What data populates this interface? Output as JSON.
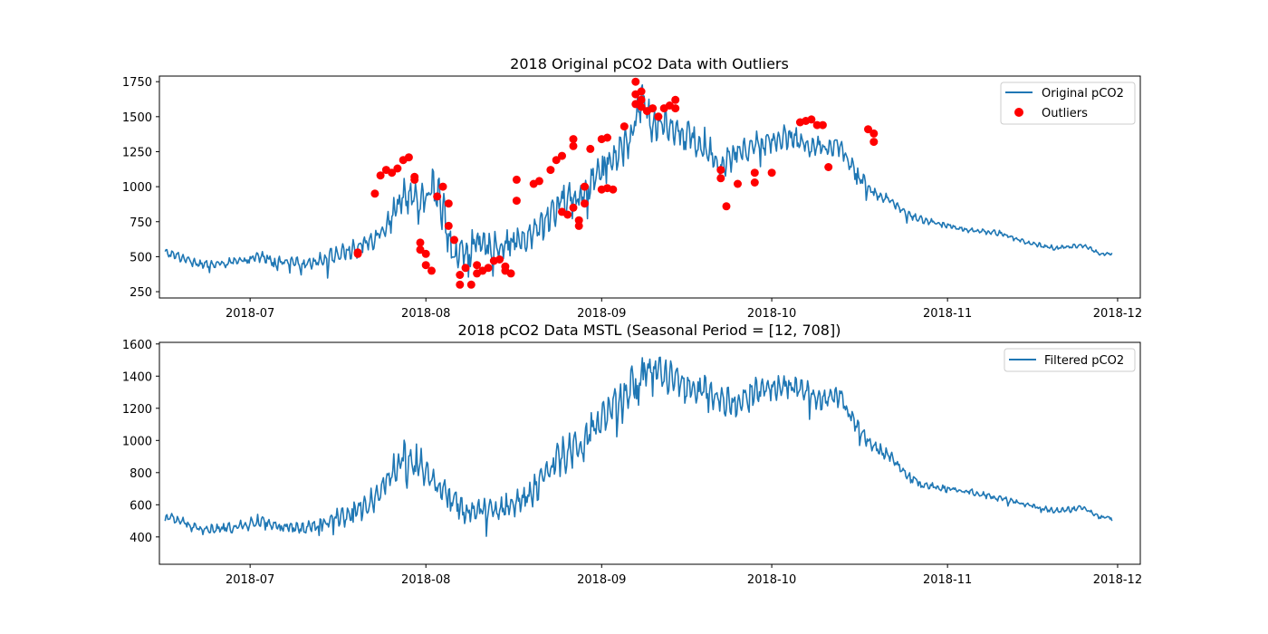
{
  "colors": {
    "line": "#1f77b4",
    "outlier": "#ff0000",
    "axes": "#000000",
    "legend_border": "#cccccc"
  },
  "chart_data": [
    {
      "type": "line",
      "title": "2018 Original pCO2 Data with Outliers",
      "xlabel": "",
      "ylabel": "",
      "x_range": [
        "2018-06-15",
        "2018-12-05"
      ],
      "ylim": [
        205,
        1790
      ],
      "x_ticks": [
        "2018-07",
        "2018-08",
        "2018-09",
        "2018-10",
        "2018-11",
        "2018-12"
      ],
      "y_ticks": [
        250,
        500,
        750,
        1000,
        1250,
        1500,
        1750
      ],
      "grid": false,
      "legend_position": "top-right",
      "series": [
        {
          "name": "Original pCO2",
          "kind": "line",
          "x": [
            "2018-06-16",
            "2018-06-20",
            "2018-06-23",
            "2018-06-26",
            "2018-06-30",
            "2018-07-03",
            "2018-07-06",
            "2018-07-10",
            "2018-07-13",
            "2018-07-16",
            "2018-07-20",
            "2018-07-23",
            "2018-07-26",
            "2018-07-28",
            "2018-07-31",
            "2018-08-02",
            "2018-08-04",
            "2018-08-06",
            "2018-08-08",
            "2018-08-11",
            "2018-08-14",
            "2018-08-16",
            "2018-08-19",
            "2018-08-22",
            "2018-08-25",
            "2018-08-28",
            "2018-08-31",
            "2018-09-03",
            "2018-09-06",
            "2018-09-08",
            "2018-09-10",
            "2018-09-13",
            "2018-09-16",
            "2018-09-19",
            "2018-09-22",
            "2018-09-25",
            "2018-09-28",
            "2018-10-01",
            "2018-10-04",
            "2018-10-07",
            "2018-10-10",
            "2018-10-13",
            "2018-10-16",
            "2018-10-19",
            "2018-10-22",
            "2018-10-25",
            "2018-10-28",
            "2018-11-01",
            "2018-11-05",
            "2018-11-10",
            "2018-11-15",
            "2018-11-20",
            "2018-11-25",
            "2018-11-28",
            "2018-11-30"
          ],
          "y": [
            530,
            480,
            440,
            450,
            470,
            500,
            460,
            450,
            470,
            510,
            560,
            640,
            780,
            960,
            850,
            1000,
            850,
            480,
            560,
            580,
            570,
            610,
            620,
            760,
            900,
            930,
            1080,
            1200,
            1340,
            1620,
            1450,
            1450,
            1360,
            1300,
            1150,
            1250,
            1300,
            1330,
            1360,
            1300,
            1280,
            1300,
            1080,
            960,
            900,
            800,
            760,
            720,
            690,
            670,
            600,
            560,
            580,
            520,
            520
          ],
          "amplitude": [
            35,
            50,
            45,
            40,
            45,
            60,
            55,
            55,
            70,
            80,
            90,
            100,
            140,
            170,
            200,
            180,
            220,
            170,
            180,
            150,
            120,
            130,
            150,
            160,
            170,
            200,
            170,
            160,
            170,
            200,
            180,
            150,
            150,
            160,
            140,
            130,
            120,
            110,
            110,
            100,
            90,
            100,
            80,
            60,
            40,
            35,
            30,
            30,
            25,
            25,
            20,
            25,
            20,
            15,
            15
          ]
        },
        {
          "name": "Outliers",
          "kind": "scatter",
          "points": [
            [
              "2018-07-20",
              520
            ],
            [
              "2018-07-20",
              530
            ],
            [
              "2018-07-23",
              950
            ],
            [
              "2018-07-24",
              1080
            ],
            [
              "2018-07-25",
              1120
            ],
            [
              "2018-07-26",
              1100
            ],
            [
              "2018-07-27",
              1130
            ],
            [
              "2018-07-28",
              1190
            ],
            [
              "2018-07-29",
              1210
            ],
            [
              "2018-07-30",
              1070
            ],
            [
              "2018-07-30",
              1050
            ],
            [
              "2018-07-31",
              600
            ],
            [
              "2018-07-31",
              550
            ],
            [
              "2018-08-01",
              520
            ],
            [
              "2018-08-01",
              440
            ],
            [
              "2018-08-02",
              400
            ],
            [
              "2018-08-03",
              930
            ],
            [
              "2018-08-04",
              1000
            ],
            [
              "2018-08-05",
              880
            ],
            [
              "2018-08-05",
              720
            ],
            [
              "2018-08-06",
              620
            ],
            [
              "2018-08-07",
              300
            ],
            [
              "2018-08-07",
              370
            ],
            [
              "2018-08-08",
              420
            ],
            [
              "2018-08-09",
              300
            ],
            [
              "2018-08-10",
              380
            ],
            [
              "2018-08-10",
              440
            ],
            [
              "2018-08-11",
              400
            ],
            [
              "2018-08-12",
              420
            ],
            [
              "2018-08-13",
              470
            ],
            [
              "2018-08-14",
              480
            ],
            [
              "2018-08-15",
              400
            ],
            [
              "2018-08-15",
              430
            ],
            [
              "2018-08-16",
              380
            ],
            [
              "2018-08-17",
              1050
            ],
            [
              "2018-08-17",
              900
            ],
            [
              "2018-08-20",
              1020
            ],
            [
              "2018-08-21",
              1040
            ],
            [
              "2018-08-23",
              1120
            ],
            [
              "2018-08-24",
              1190
            ],
            [
              "2018-08-25",
              1220
            ],
            [
              "2018-08-25",
              820
            ],
            [
              "2018-08-26",
              800
            ],
            [
              "2018-08-27",
              850
            ],
            [
              "2018-08-27",
              1340
            ],
            [
              "2018-08-27",
              1290
            ],
            [
              "2018-08-28",
              720
            ],
            [
              "2018-08-28",
              760
            ],
            [
              "2018-08-29",
              880
            ],
            [
              "2018-08-29",
              1000
            ],
            [
              "2018-08-30",
              1270
            ],
            [
              "2018-09-01",
              1340
            ],
            [
              "2018-09-02",
              1350
            ],
            [
              "2018-09-01",
              980
            ],
            [
              "2018-09-02",
              990
            ],
            [
              "2018-09-03",
              980
            ],
            [
              "2018-09-05",
              1430
            ],
            [
              "2018-09-07",
              1750
            ],
            [
              "2018-09-07",
              1660
            ],
            [
              "2018-09-07",
              1590
            ],
            [
              "2018-09-08",
              1680
            ],
            [
              "2018-09-08",
              1620
            ],
            [
              "2018-09-08",
              1570
            ],
            [
              "2018-09-09",
              1540
            ],
            [
              "2018-09-10",
              1560
            ],
            [
              "2018-09-11",
              1500
            ],
            [
              "2018-09-12",
              1560
            ],
            [
              "2018-09-13",
              1580
            ],
            [
              "2018-09-14",
              1620
            ],
            [
              "2018-09-14",
              1560
            ],
            [
              "2018-09-22",
              1120
            ],
            [
              "2018-09-22",
              1060
            ],
            [
              "2018-09-23",
              860
            ],
            [
              "2018-09-25",
              1020
            ],
            [
              "2018-09-28",
              1030
            ],
            [
              "2018-09-28",
              1100
            ],
            [
              "2018-10-01",
              1100
            ],
            [
              "2018-10-06",
              1460
            ],
            [
              "2018-10-07",
              1470
            ],
            [
              "2018-10-08",
              1480
            ],
            [
              "2018-10-09",
              1440
            ],
            [
              "2018-10-10",
              1440
            ],
            [
              "2018-10-11",
              1140
            ],
            [
              "2018-10-18",
              1410
            ],
            [
              "2018-10-19",
              1380
            ],
            [
              "2018-10-19",
              1320
            ]
          ]
        }
      ]
    },
    {
      "type": "line",
      "title": "2018 pCO2 Data MSTL (Seasonal Period = [12, 708])",
      "xlabel": "",
      "ylabel": "",
      "x_range": [
        "2018-06-15",
        "2018-12-05"
      ],
      "ylim": [
        230,
        1610
      ],
      "x_ticks": [
        "2018-07",
        "2018-08",
        "2018-09",
        "2018-10",
        "2018-11",
        "2018-12"
      ],
      "y_ticks": [
        400,
        600,
        800,
        1000,
        1200,
        1400,
        1600
      ],
      "grid": false,
      "legend_position": "top-right",
      "series": [
        {
          "name": "Filtered pCO2",
          "kind": "line",
          "x": [
            "2018-06-16",
            "2018-06-20",
            "2018-06-23",
            "2018-06-26",
            "2018-06-30",
            "2018-07-03",
            "2018-07-06",
            "2018-07-10",
            "2018-07-13",
            "2018-07-16",
            "2018-07-20",
            "2018-07-23",
            "2018-07-26",
            "2018-07-28",
            "2018-07-31",
            "2018-08-02",
            "2018-08-04",
            "2018-08-06",
            "2018-08-08",
            "2018-08-11",
            "2018-08-14",
            "2018-08-16",
            "2018-08-19",
            "2018-08-22",
            "2018-08-25",
            "2018-08-28",
            "2018-08-31",
            "2018-09-03",
            "2018-09-06",
            "2018-09-08",
            "2018-09-10",
            "2018-09-13",
            "2018-09-16",
            "2018-09-19",
            "2018-09-22",
            "2018-09-25",
            "2018-09-28",
            "2018-10-01",
            "2018-10-04",
            "2018-10-07",
            "2018-10-10",
            "2018-10-13",
            "2018-10-16",
            "2018-10-19",
            "2018-10-22",
            "2018-10-25",
            "2018-10-28",
            "2018-11-01",
            "2018-11-05",
            "2018-11-10",
            "2018-11-15",
            "2018-11-20",
            "2018-11-25",
            "2018-11-28",
            "2018-11-30"
          ],
          "y": [
            530,
            480,
            440,
            450,
            470,
            500,
            460,
            450,
            470,
            510,
            560,
            640,
            800,
            900,
            860,
            760,
            680,
            620,
            560,
            580,
            570,
            600,
            650,
            790,
            900,
            960,
            1080,
            1200,
            1330,
            1460,
            1440,
            1400,
            1320,
            1300,
            1230,
            1250,
            1300,
            1320,
            1340,
            1300,
            1250,
            1280,
            1080,
            960,
            900,
            780,
            720,
            700,
            680,
            640,
            600,
            560,
            580,
            520,
            520
          ],
          "amplitude": [
            35,
            50,
            45,
            40,
            45,
            60,
            55,
            55,
            70,
            80,
            90,
            100,
            120,
            130,
            140,
            120,
            110,
            100,
            100,
            90,
            90,
            110,
            130,
            150,
            150,
            160,
            150,
            150,
            160,
            160,
            160,
            140,
            130,
            130,
            120,
            120,
            110,
            100,
            100,
            100,
            90,
            90,
            80,
            60,
            40,
            35,
            30,
            30,
            25,
            25,
            20,
            25,
            20,
            15,
            15
          ]
        }
      ]
    }
  ]
}
